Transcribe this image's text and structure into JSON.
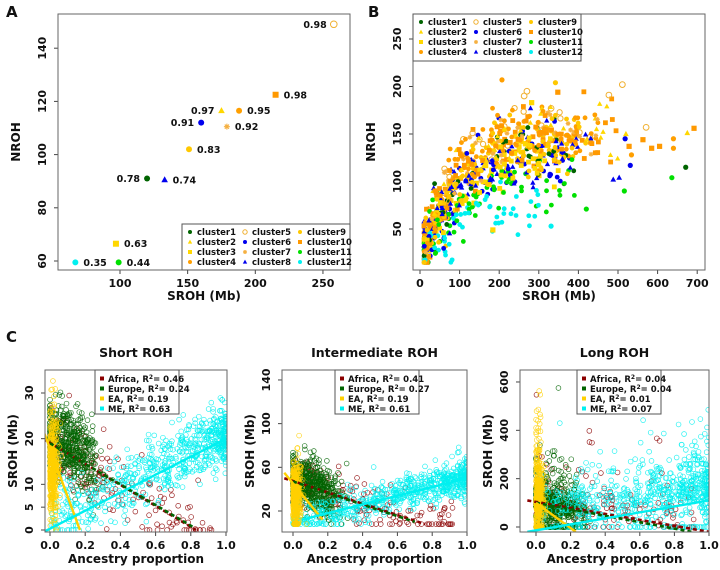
{
  "panel_labels": {
    "a": "A",
    "b": "B",
    "c": "C"
  },
  "colors": {
    "cluster1": "#006400",
    "cluster2": "#FFD700",
    "cluster3": "#FFD700",
    "cluster4": "#FF9F00",
    "cluster5": "#F0B030",
    "cluster6": "#0000EE",
    "cluster7": "#F5B041",
    "cluster8": "#0000EE",
    "cluster9": "#FFC800",
    "cluster10": "#FF9900",
    "cluster11": "#00E000",
    "cluster12": "#00F0F0",
    "Africa": "#8B0000",
    "Europe": "#006400",
    "EA": "#FFD000",
    "ME": "#00F0F0"
  },
  "chart_data": [
    {
      "id": "A",
      "type": "scatter",
      "xlabel": "SROH (Mb)",
      "ylabel": "NROH",
      "xticks": [
        100,
        150,
        200,
        250
      ],
      "yticks": [
        60,
        80,
        100,
        120,
        140
      ],
      "legend_position": "bottom-right",
      "points": [
        {
          "cluster": "cluster1",
          "shape": "circle",
          "x": 120,
          "y": 91,
          "label": "0.78",
          "label_side": "left"
        },
        {
          "cluster": "cluster2",
          "shape": "triangle",
          "x": 175,
          "y": 116.5,
          "label": "0.97",
          "label_side": "left"
        },
        {
          "cluster": "cluster3",
          "shape": "square",
          "x": 97,
          "y": 66.5,
          "label": "0.63",
          "label_side": "right"
        },
        {
          "cluster": "cluster4",
          "shape": "circle",
          "x": 188,
          "y": 116.5,
          "label": "0.95",
          "label_side": "right"
        },
        {
          "cluster": "cluster5",
          "shape": "open-circle",
          "x": 258,
          "y": 149,
          "label": "0.98",
          "label_side": "left"
        },
        {
          "cluster": "cluster6",
          "shape": "circle",
          "x": 160,
          "y": 112,
          "label": "0.91",
          "label_side": "left"
        },
        {
          "cluster": "cluster7",
          "shape": "star",
          "x": 179,
          "y": 110.5,
          "label": "0.92",
          "label_side": "right"
        },
        {
          "cluster": "cluster8",
          "shape": "triangle",
          "x": 133,
          "y": 90.5,
          "label": "0.74",
          "label_side": "right"
        },
        {
          "cluster": "cluster9",
          "shape": "circle",
          "x": 151,
          "y": 102,
          "label": "0.83",
          "label_side": "right"
        },
        {
          "cluster": "cluster10",
          "shape": "square",
          "x": 215,
          "y": 122.5,
          "label": "0.98",
          "label_side": "right"
        },
        {
          "cluster": "cluster11",
          "shape": "circle",
          "x": 99,
          "y": 59.5,
          "label": "0.44",
          "label_side": "right"
        },
        {
          "cluster": "cluster12",
          "shape": "circle",
          "x": 67,
          "y": 59.5,
          "label": "0.35",
          "label_side": "right"
        }
      ]
    },
    {
      "id": "B",
      "type": "scatter",
      "xlabel": "SROH (Mb)",
      "ylabel": "NROH",
      "xticks": [
        0,
        100,
        200,
        300,
        400,
        500,
        600,
        700
      ],
      "yticks": [
        50,
        100,
        150,
        200,
        250
      ],
      "legend_position": "top-left",
      "clusters": [
        {
          "name": "cluster1",
          "shape": "circle",
          "asymptote": 125,
          "xmax": 400,
          "n": 50
        },
        {
          "name": "cluster2",
          "shape": "triangle",
          "asymptote": 135,
          "xmax": 500,
          "n": 60
        },
        {
          "name": "cluster3",
          "shape": "square",
          "asymptote": 115,
          "xmax": 350,
          "n": 80
        },
        {
          "name": "cluster4",
          "shape": "circle",
          "asymptote": 140,
          "xmax": 450,
          "n": 110
        },
        {
          "name": "cluster5",
          "shape": "open-circle",
          "asymptote": 155,
          "xmax": 450,
          "n": 30
        },
        {
          "name": "cluster6",
          "shape": "circle",
          "asymptote": 115,
          "xmax": 400,
          "n": 70
        },
        {
          "name": "cluster7",
          "shape": "star",
          "asymptote": 135,
          "xmax": 480,
          "n": 40
        },
        {
          "name": "cluster8",
          "shape": "triangle",
          "asymptote": 115,
          "xmax": 450,
          "n": 90
        },
        {
          "name": "cluster9",
          "shape": "circle",
          "asymptote": 130,
          "xmax": 420,
          "n": 140
        },
        {
          "name": "cluster10",
          "shape": "square",
          "asymptote": 138,
          "xmax": 500,
          "n": 120
        },
        {
          "name": "cluster11",
          "shape": "circle",
          "asymptote": 85,
          "xmax": 400,
          "n": 70
        },
        {
          "name": "cluster12",
          "shape": "circle",
          "asymptote": 65,
          "xmax": 300,
          "n": 60
        }
      ],
      "outliers": [
        {
          "cluster": "cluster4",
          "x": 207,
          "y": 207
        },
        {
          "cluster": "cluster9",
          "x": 342,
          "y": 204
        },
        {
          "cluster": "cluster10",
          "x": 348,
          "y": 194
        },
        {
          "cluster": "cluster5",
          "x": 270,
          "y": 195
        },
        {
          "cluster": "cluster5",
          "x": 263,
          "y": 190
        },
        {
          "cluster": "cluster3",
          "x": 282,
          "y": 183
        },
        {
          "cluster": "cluster5",
          "x": 511,
          "y": 202
        },
        {
          "cluster": "cluster5",
          "x": 477,
          "y": 191
        },
        {
          "cluster": "cluster5",
          "x": 331,
          "y": 177
        },
        {
          "cluster": "cluster5",
          "x": 571,
          "y": 157
        },
        {
          "cluster": "cluster10",
          "x": 692,
          "y": 156
        },
        {
          "cluster": "cluster2",
          "x": 675,
          "y": 151
        },
        {
          "cluster": "cluster1",
          "x": 671,
          "y": 115
        },
        {
          "cluster": "cluster11",
          "x": 636,
          "y": 104
        },
        {
          "cluster": "cluster4",
          "x": 640,
          "y": 145
        },
        {
          "cluster": "cluster4",
          "x": 640,
          "y": 135
        },
        {
          "cluster": "cluster10",
          "x": 605,
          "y": 137
        },
        {
          "cluster": "cluster10",
          "x": 585,
          "y": 135
        },
        {
          "cluster": "cluster10",
          "x": 563,
          "y": 144
        },
        {
          "cluster": "cluster6",
          "x": 518,
          "y": 145
        },
        {
          "cluster": "cluster6",
          "x": 531,
          "y": 117
        },
        {
          "cluster": "cluster8",
          "x": 503,
          "y": 104
        },
        {
          "cluster": "cluster8",
          "x": 488,
          "y": 102
        },
        {
          "cluster": "cluster11",
          "x": 516,
          "y": 90
        },
        {
          "cluster": "cluster11",
          "x": 420,
          "y": 71
        },
        {
          "cluster": "cluster12",
          "x": 331,
          "y": 53
        },
        {
          "cluster": "cluster3",
          "x": 184,
          "y": 49
        },
        {
          "cluster": "cluster4",
          "x": 534,
          "y": 128
        },
        {
          "cluster": "cluster10",
          "x": 528,
          "y": 137
        },
        {
          "cluster": "cluster2",
          "x": 520,
          "y": 150
        }
      ]
    },
    {
      "id": "C1",
      "type": "scatter",
      "title": "Short ROH",
      "xlabel": "Ancestry proportion",
      "ylabel": "SROH (Mb)",
      "xticks": [
        "0.0",
        "0.2",
        "0.4",
        "0.6",
        "0.8",
        "1.0"
      ],
      "yticks": [
        0,
        5,
        10,
        20,
        30
      ],
      "legend_position": "top-center",
      "fits": [
        {
          "population": "Africa",
          "r2": "0.46",
          "x": [
            -0.04,
            0.83
          ],
          "y": [
            20,
            0
          ],
          "style": "dashed"
        },
        {
          "population": "Europe",
          "r2": "0.24",
          "x": [
            0.0,
            0.82
          ],
          "y": [
            19,
            0.5
          ],
          "style": "dashed"
        },
        {
          "population": "EA",
          "r2": "0.19",
          "x": [
            -0.04,
            0.17
          ],
          "y": [
            22,
            0
          ],
          "style": "solid"
        },
        {
          "population": "ME",
          "r2": "0.63",
          "x": [
            -0.04,
            1.0
          ],
          "y": [
            -0.5,
            20
          ],
          "style": "solid"
        }
      ]
    },
    {
      "id": "C2",
      "type": "scatter",
      "title": "Intermediate ROH",
      "xlabel": "Ancestry proportion",
      "ylabel": "SROH (Mb)",
      "xticks": [
        "0.0",
        "0.2",
        "0.4",
        "0.6",
        "0.8",
        "1.0"
      ],
      "yticks": [
        20,
        60,
        100,
        140
      ],
      "legend_position": "top-center",
      "fits": [
        {
          "population": "Africa",
          "r2": "0.41",
          "x": [
            -0.05,
            0.76
          ],
          "y": [
            50,
            8
          ],
          "style": "dashed"
        },
        {
          "population": "Europe",
          "r2": "0.27",
          "x": [
            0.0,
            0.7
          ],
          "y": [
            47,
            10
          ],
          "style": "dashed"
        },
        {
          "population": "EA",
          "r2": "0.19",
          "x": [
            -0.05,
            0.17
          ],
          "y": [
            55,
            12
          ],
          "style": "solid"
        },
        {
          "population": "ME",
          "r2": "0.61",
          "x": [
            0.05,
            1.0
          ],
          "y": [
            12,
            50
          ],
          "style": "solid"
        }
      ]
    },
    {
      "id": "C3",
      "type": "scatter",
      "title": "Long ROH",
      "xlabel": "Ancestry proportion",
      "ylabel": "SROH (Mb)",
      "xticks": [
        "0.0",
        "0.2",
        "0.4",
        "0.6",
        "0.8",
        "1.0"
      ],
      "yticks": [
        0,
        200,
        400,
        600
      ],
      "legend_position": "top-center",
      "fits": [
        {
          "population": "Africa",
          "r2": "0.04",
          "x": [
            -0.05,
            1.0
          ],
          "y": [
            110,
            -20
          ],
          "style": "dashed"
        },
        {
          "population": "Europe",
          "r2": "0.04",
          "x": [
            0.0,
            0.9
          ],
          "y": [
            100,
            -20
          ],
          "style": "dashed"
        },
        {
          "population": "EA",
          "r2": "0.01",
          "x": [
            0.0,
            0.23
          ],
          "y": [
            100,
            -20
          ],
          "style": "solid"
        },
        {
          "population": "ME",
          "r2": "0.07",
          "x": [
            -0.05,
            1.0
          ],
          "y": [
            -20,
            110
          ],
          "style": "solid"
        }
      ]
    }
  ],
  "r2_symbol": "R",
  "r2_exponent": "2",
  "r2_sep": "= "
}
